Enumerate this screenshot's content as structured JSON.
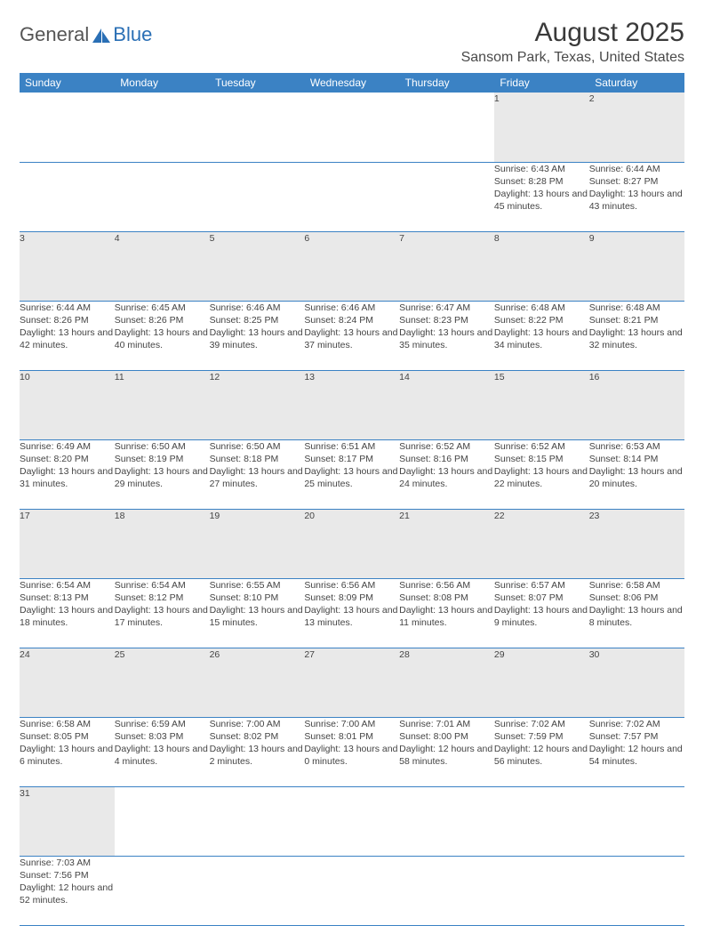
{
  "brand": {
    "general": "General",
    "blue": "Blue"
  },
  "title": "August 2025",
  "location": "Sansom Park, Texas, United States",
  "colors": {
    "header_bg": "#3b82c4",
    "header_text": "#ffffff",
    "daynum_bg": "#e9e9e9",
    "cell_border": "#3b82c4",
    "text": "#444444",
    "brand_blue": "#2a6fb5"
  },
  "weekdays": [
    "Sunday",
    "Monday",
    "Tuesday",
    "Wednesday",
    "Thursday",
    "Friday",
    "Saturday"
  ],
  "weeks": [
    {
      "nums": [
        "",
        "",
        "",
        "",
        "",
        "1",
        "2"
      ],
      "cells": [
        null,
        null,
        null,
        null,
        null,
        {
          "sr": "6:43 AM",
          "ss": "8:28 PM",
          "dl": "13 hours and 45 minutes."
        },
        {
          "sr": "6:44 AM",
          "ss": "8:27 PM",
          "dl": "13 hours and 43 minutes."
        }
      ]
    },
    {
      "nums": [
        "3",
        "4",
        "5",
        "6",
        "7",
        "8",
        "9"
      ],
      "cells": [
        {
          "sr": "6:44 AM",
          "ss": "8:26 PM",
          "dl": "13 hours and 42 minutes."
        },
        {
          "sr": "6:45 AM",
          "ss": "8:26 PM",
          "dl": "13 hours and 40 minutes."
        },
        {
          "sr": "6:46 AM",
          "ss": "8:25 PM",
          "dl": "13 hours and 39 minutes."
        },
        {
          "sr": "6:46 AM",
          "ss": "8:24 PM",
          "dl": "13 hours and 37 minutes."
        },
        {
          "sr": "6:47 AM",
          "ss": "8:23 PM",
          "dl": "13 hours and 35 minutes."
        },
        {
          "sr": "6:48 AM",
          "ss": "8:22 PM",
          "dl": "13 hours and 34 minutes."
        },
        {
          "sr": "6:48 AM",
          "ss": "8:21 PM",
          "dl": "13 hours and 32 minutes."
        }
      ]
    },
    {
      "nums": [
        "10",
        "11",
        "12",
        "13",
        "14",
        "15",
        "16"
      ],
      "cells": [
        {
          "sr": "6:49 AM",
          "ss": "8:20 PM",
          "dl": "13 hours and 31 minutes."
        },
        {
          "sr": "6:50 AM",
          "ss": "8:19 PM",
          "dl": "13 hours and 29 minutes."
        },
        {
          "sr": "6:50 AM",
          "ss": "8:18 PM",
          "dl": "13 hours and 27 minutes."
        },
        {
          "sr": "6:51 AM",
          "ss": "8:17 PM",
          "dl": "13 hours and 25 minutes."
        },
        {
          "sr": "6:52 AM",
          "ss": "8:16 PM",
          "dl": "13 hours and 24 minutes."
        },
        {
          "sr": "6:52 AM",
          "ss": "8:15 PM",
          "dl": "13 hours and 22 minutes."
        },
        {
          "sr": "6:53 AM",
          "ss": "8:14 PM",
          "dl": "13 hours and 20 minutes."
        }
      ]
    },
    {
      "nums": [
        "17",
        "18",
        "19",
        "20",
        "21",
        "22",
        "23"
      ],
      "cells": [
        {
          "sr": "6:54 AM",
          "ss": "8:13 PM",
          "dl": "13 hours and 18 minutes."
        },
        {
          "sr": "6:54 AM",
          "ss": "8:12 PM",
          "dl": "13 hours and 17 minutes."
        },
        {
          "sr": "6:55 AM",
          "ss": "8:10 PM",
          "dl": "13 hours and 15 minutes."
        },
        {
          "sr": "6:56 AM",
          "ss": "8:09 PM",
          "dl": "13 hours and 13 minutes."
        },
        {
          "sr": "6:56 AM",
          "ss": "8:08 PM",
          "dl": "13 hours and 11 minutes."
        },
        {
          "sr": "6:57 AM",
          "ss": "8:07 PM",
          "dl": "13 hours and 9 minutes."
        },
        {
          "sr": "6:58 AM",
          "ss": "8:06 PM",
          "dl": "13 hours and 8 minutes."
        }
      ]
    },
    {
      "nums": [
        "24",
        "25",
        "26",
        "27",
        "28",
        "29",
        "30"
      ],
      "cells": [
        {
          "sr": "6:58 AM",
          "ss": "8:05 PM",
          "dl": "13 hours and 6 minutes."
        },
        {
          "sr": "6:59 AM",
          "ss": "8:03 PM",
          "dl": "13 hours and 4 minutes."
        },
        {
          "sr": "7:00 AM",
          "ss": "8:02 PM",
          "dl": "13 hours and 2 minutes."
        },
        {
          "sr": "7:00 AM",
          "ss": "8:01 PM",
          "dl": "13 hours and 0 minutes."
        },
        {
          "sr": "7:01 AM",
          "ss": "8:00 PM",
          "dl": "12 hours and 58 minutes."
        },
        {
          "sr": "7:02 AM",
          "ss": "7:59 PM",
          "dl": "12 hours and 56 minutes."
        },
        {
          "sr": "7:02 AM",
          "ss": "7:57 PM",
          "dl": "12 hours and 54 minutes."
        }
      ]
    },
    {
      "nums": [
        "31",
        "",
        "",
        "",
        "",
        "",
        ""
      ],
      "cells": [
        {
          "sr": "7:03 AM",
          "ss": "7:56 PM",
          "dl": "12 hours and 52 minutes."
        },
        null,
        null,
        null,
        null,
        null,
        null
      ]
    }
  ],
  "labels": {
    "sunrise": "Sunrise: ",
    "sunset": "Sunset: ",
    "daylight": "Daylight: "
  }
}
